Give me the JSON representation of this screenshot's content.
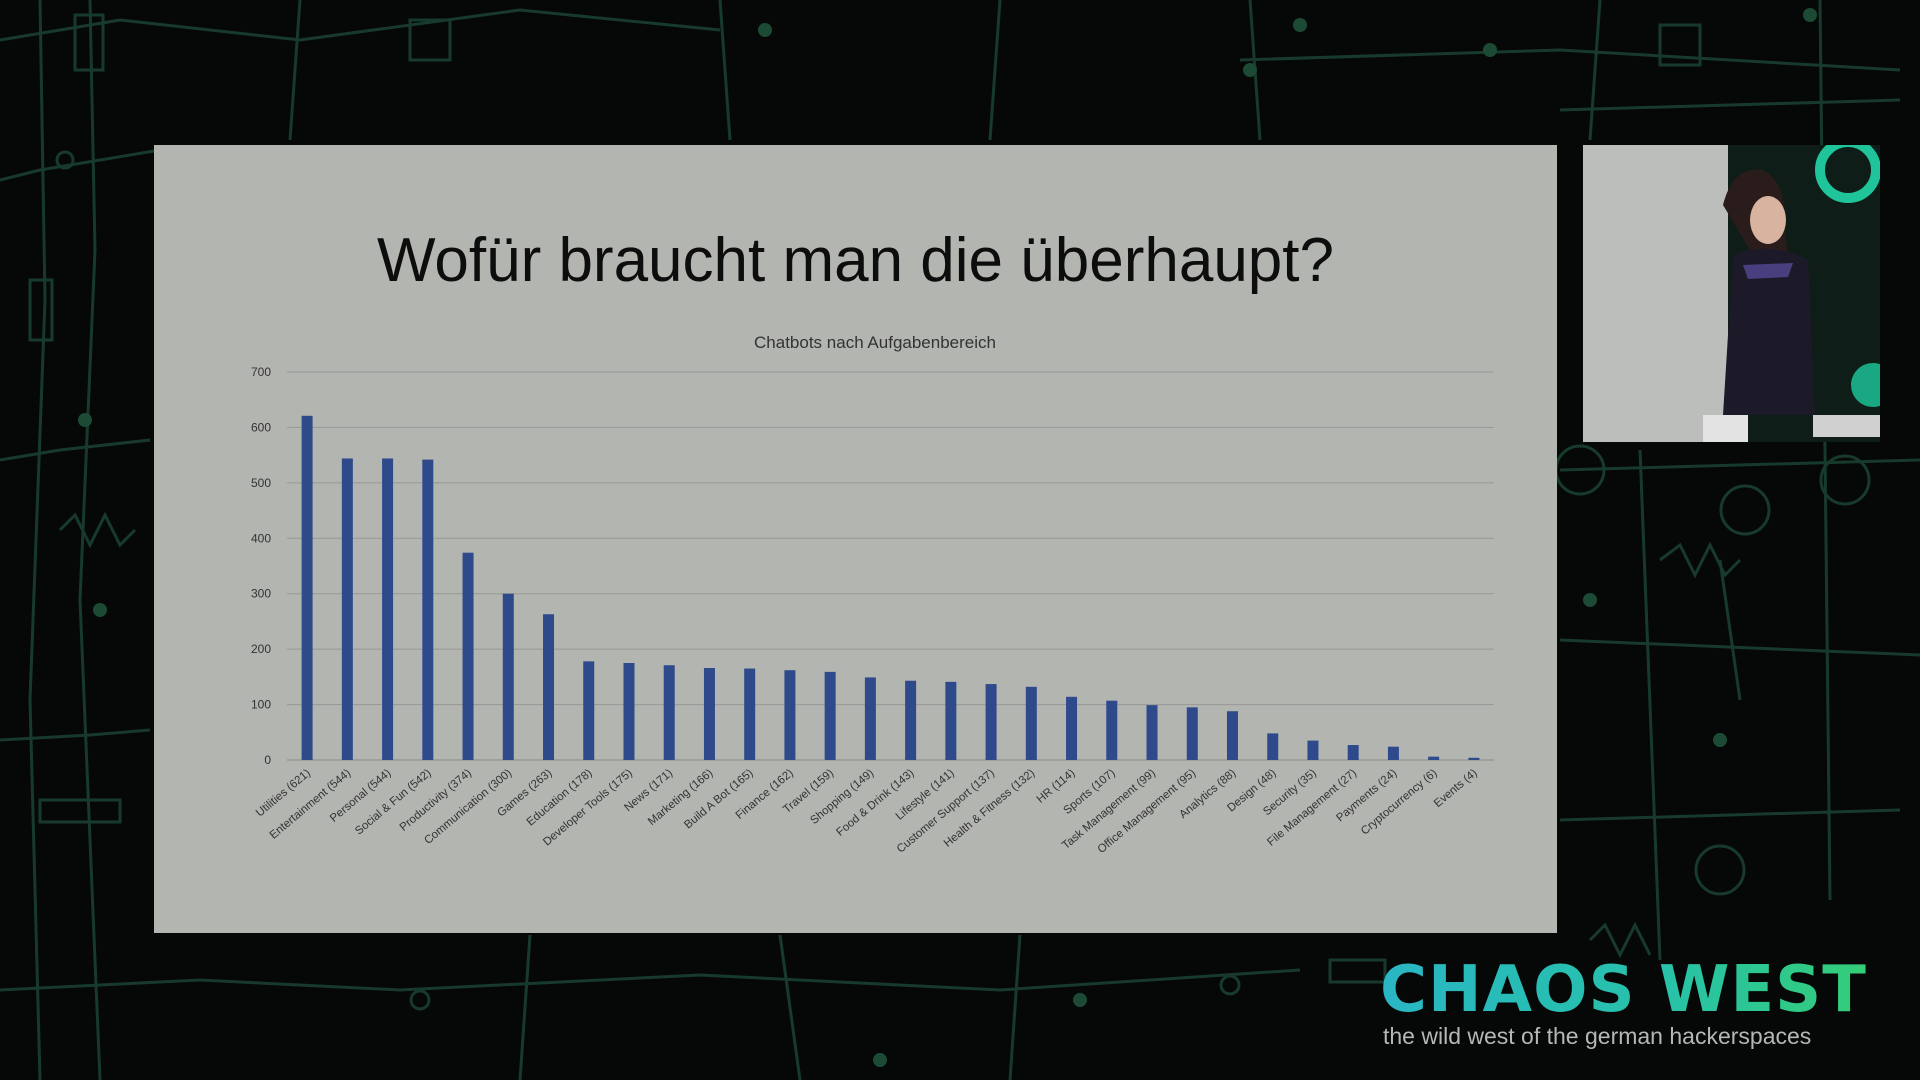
{
  "slide": {
    "title": "Wofür braucht man die überhaupt?"
  },
  "chart_data": {
    "type": "bar",
    "title": "Chatbots nach Aufgabenbereich",
    "xlabel": "",
    "ylabel": "",
    "ylim": [
      0,
      700
    ],
    "yticks": [
      0,
      100,
      200,
      300,
      400,
      500,
      600,
      700
    ],
    "grid": true,
    "bar_color": "#2f4a8a",
    "categories": [
      "Utilities (621)",
      "Entertainment (544)",
      "Personal (544)",
      "Social & Fun (542)",
      "Productivity (374)",
      "Communication (300)",
      "Games (263)",
      "Education (178)",
      "Developer Tools (175)",
      "News (171)",
      "Marketing (166)",
      "Build A Bot (165)",
      "Finance (162)",
      "Travel (159)",
      "Shopping (149)",
      "Food & Drink (143)",
      "Lifestyle (141)",
      "Customer Support (137)",
      "Health & Fitness (132)",
      "HR (114)",
      "Sports (107)",
      "Task Management (99)",
      "Office Management (95)",
      "Analytics (88)",
      "Design (48)",
      "Security (35)",
      "File Management (27)",
      "Payments (24)",
      "Cryptocurrency (6)",
      "Events (4)"
    ],
    "values": [
      621,
      544,
      544,
      542,
      374,
      300,
      263,
      178,
      175,
      171,
      166,
      165,
      162,
      159,
      149,
      143,
      141,
      137,
      132,
      114,
      107,
      99,
      95,
      88,
      48,
      35,
      27,
      24,
      6,
      4
    ]
  },
  "branding": {
    "title": "CHAOS WEST",
    "tagline": "the wild west of the german hackerspaces"
  },
  "colors": {
    "accent_teal": "#2ab6c4",
    "accent_green": "#36cf6f",
    "circuit": "#17362a"
  }
}
